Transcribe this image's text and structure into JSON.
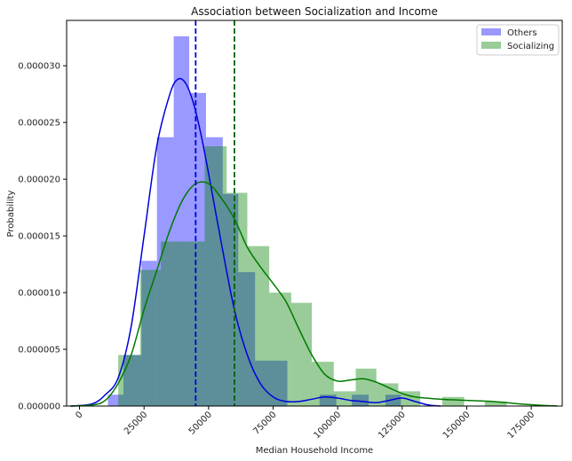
{
  "chart_data": {
    "type": "bar",
    "title": "Association between Socialization and Income",
    "xlabel": "Median Household Income",
    "ylabel": "Probability",
    "xlim": [
      -5000,
      187000
    ],
    "ylim": [
      0,
      3.4e-05
    ],
    "x_ticks": [
      0,
      25000,
      50000,
      75000,
      100000,
      125000,
      150000,
      175000
    ],
    "x_tick_labels": [
      "0",
      "25000",
      "50000",
      "75000",
      "100000",
      "125000",
      "150000",
      "175000"
    ],
    "y_ticks": [
      0,
      5e-06,
      1e-05,
      1.5e-05,
      2e-05,
      2.5e-05,
      3e-05
    ],
    "y_tick_labels": [
      "0.000000",
      "0.000005",
      "0.000010",
      "0.000015",
      "0.000020",
      "0.000025",
      "0.000030"
    ],
    "legend_position": "top-right",
    "series": [
      {
        "name": "Others",
        "color": "#0000ff",
        "histogram": [
          {
            "x0": 11000,
            "x1": 17000,
            "y": 1e-06
          },
          {
            "x0": 17000,
            "x1": 24000,
            "y": 4.5e-06
          },
          {
            "x0": 24000,
            "x1": 30000,
            "y": 1.28e-05
          },
          {
            "x0": 30000,
            "x1": 36500,
            "y": 2.37e-05
          },
          {
            "x0": 36500,
            "x1": 42500,
            "y": 3.26e-05
          },
          {
            "x0": 42500,
            "x1": 49000,
            "y": 2.76e-05
          },
          {
            "x0": 49000,
            "x1": 55500,
            "y": 2.37e-05
          },
          {
            "x0": 55500,
            "x1": 61500,
            "y": 1.87e-05
          },
          {
            "x0": 61500,
            "x1": 68000,
            "y": 1.18e-05
          },
          {
            "x0": 68000,
            "x1": 74000,
            "y": 4e-06
          },
          {
            "x0": 74000,
            "x1": 80500,
            "y": 4e-06
          },
          {
            "x0": 93000,
            "x1": 99500,
            "y": 1e-06
          },
          {
            "x0": 105500,
            "x1": 112000,
            "y": 1e-06
          },
          {
            "x0": 118500,
            "x1": 124500,
            "y": 1e-06
          }
        ],
        "kde": {
          "x": [
            -3500,
            5000,
            10000,
            15000,
            20000,
            25000,
            30000,
            35000,
            38000,
            41000,
            44000,
            47000,
            50000,
            55000,
            60000,
            65000,
            70000,
            75000,
            80000,
            85000,
            90000,
            95000,
            100000,
            105000,
            110000,
            115000,
            120000,
            125000,
            130000,
            135000,
            140000
          ],
          "y": [
            0,
            2e-07,
            1e-06,
            2.5e-06,
            7e-06,
            1.5e-05,
            2.3e-05,
            2.75e-05,
            2.88e-05,
            2.85e-05,
            2.68e-05,
            2.4e-05,
            2.05e-05,
            1.43e-05,
            8.5e-06,
            4.5e-06,
            2e-06,
            8e-07,
            4e-07,
            4e-07,
            6e-07,
            8e-07,
            7e-07,
            5e-07,
            4e-07,
            3e-07,
            5e-07,
            7e-07,
            4e-07,
            1e-07,
            0
          ]
        },
        "mean": 45000
      },
      {
        "name": "Socializing",
        "color": "#008000",
        "histogram": [
          {
            "x0": 15000,
            "x1": 23500,
            "y": 4.5e-06
          },
          {
            "x0": 23500,
            "x1": 31500,
            "y": 1.2e-05
          },
          {
            "x0": 31500,
            "x1": 40000,
            "y": 1.45e-05
          },
          {
            "x0": 40000,
            "x1": 48500,
            "y": 1.45e-05
          },
          {
            "x0": 48500,
            "x1": 57000,
            "y": 2.29e-05
          },
          {
            "x0": 57000,
            "x1": 65000,
            "y": 1.88e-05
          },
          {
            "x0": 65000,
            "x1": 73500,
            "y": 1.41e-05
          },
          {
            "x0": 73500,
            "x1": 82000,
            "y": 1e-05
          },
          {
            "x0": 82000,
            "x1": 90000,
            "y": 9.1e-06
          },
          {
            "x0": 90000,
            "x1": 98500,
            "y": 3.9e-06
          },
          {
            "x0": 98500,
            "x1": 107000,
            "y": 1.3e-06
          },
          {
            "x0": 107000,
            "x1": 115000,
            "y": 3.3e-06
          },
          {
            "x0": 115000,
            "x1": 123500,
            "y": 2e-06
          },
          {
            "x0": 123500,
            "x1": 132000,
            "y": 1.3e-06
          },
          {
            "x0": 140500,
            "x1": 149000,
            "y": 8e-07
          },
          {
            "x0": 157000,
            "x1": 165500,
            "y": 4e-07
          }
        ],
        "kde": {
          "x": [
            -3500,
            5000,
            10000,
            15000,
            20000,
            25000,
            30000,
            35000,
            40000,
            45000,
            50000,
            55000,
            60000,
            65000,
            70000,
            75000,
            80000,
            85000,
            90000,
            95000,
            100000,
            105000,
            110000,
            115000,
            120000,
            125000,
            130000,
            140000,
            150000,
            160000,
            170000,
            180000,
            185000
          ],
          "y": [
            0,
            1e-07,
            5e-07,
            2e-06,
            4.5e-06,
            8.5e-06,
            1.2e-05,
            1.55e-05,
            1.82e-05,
            1.96e-05,
            1.96e-05,
            1.83e-05,
            1.65e-05,
            1.4e-05,
            1.23e-05,
            1.08e-05,
            9.2e-06,
            6.8e-06,
            4.5e-06,
            2.8e-06,
            2.2e-06,
            2.3e-06,
            2.4e-06,
            2.1e-06,
            1.6e-06,
            1.1e-06,
            8e-07,
            6e-07,
            5e-07,
            4e-07,
            2e-07,
            5e-08,
            0
          ]
        },
        "mean": 60000
      }
    ]
  }
}
